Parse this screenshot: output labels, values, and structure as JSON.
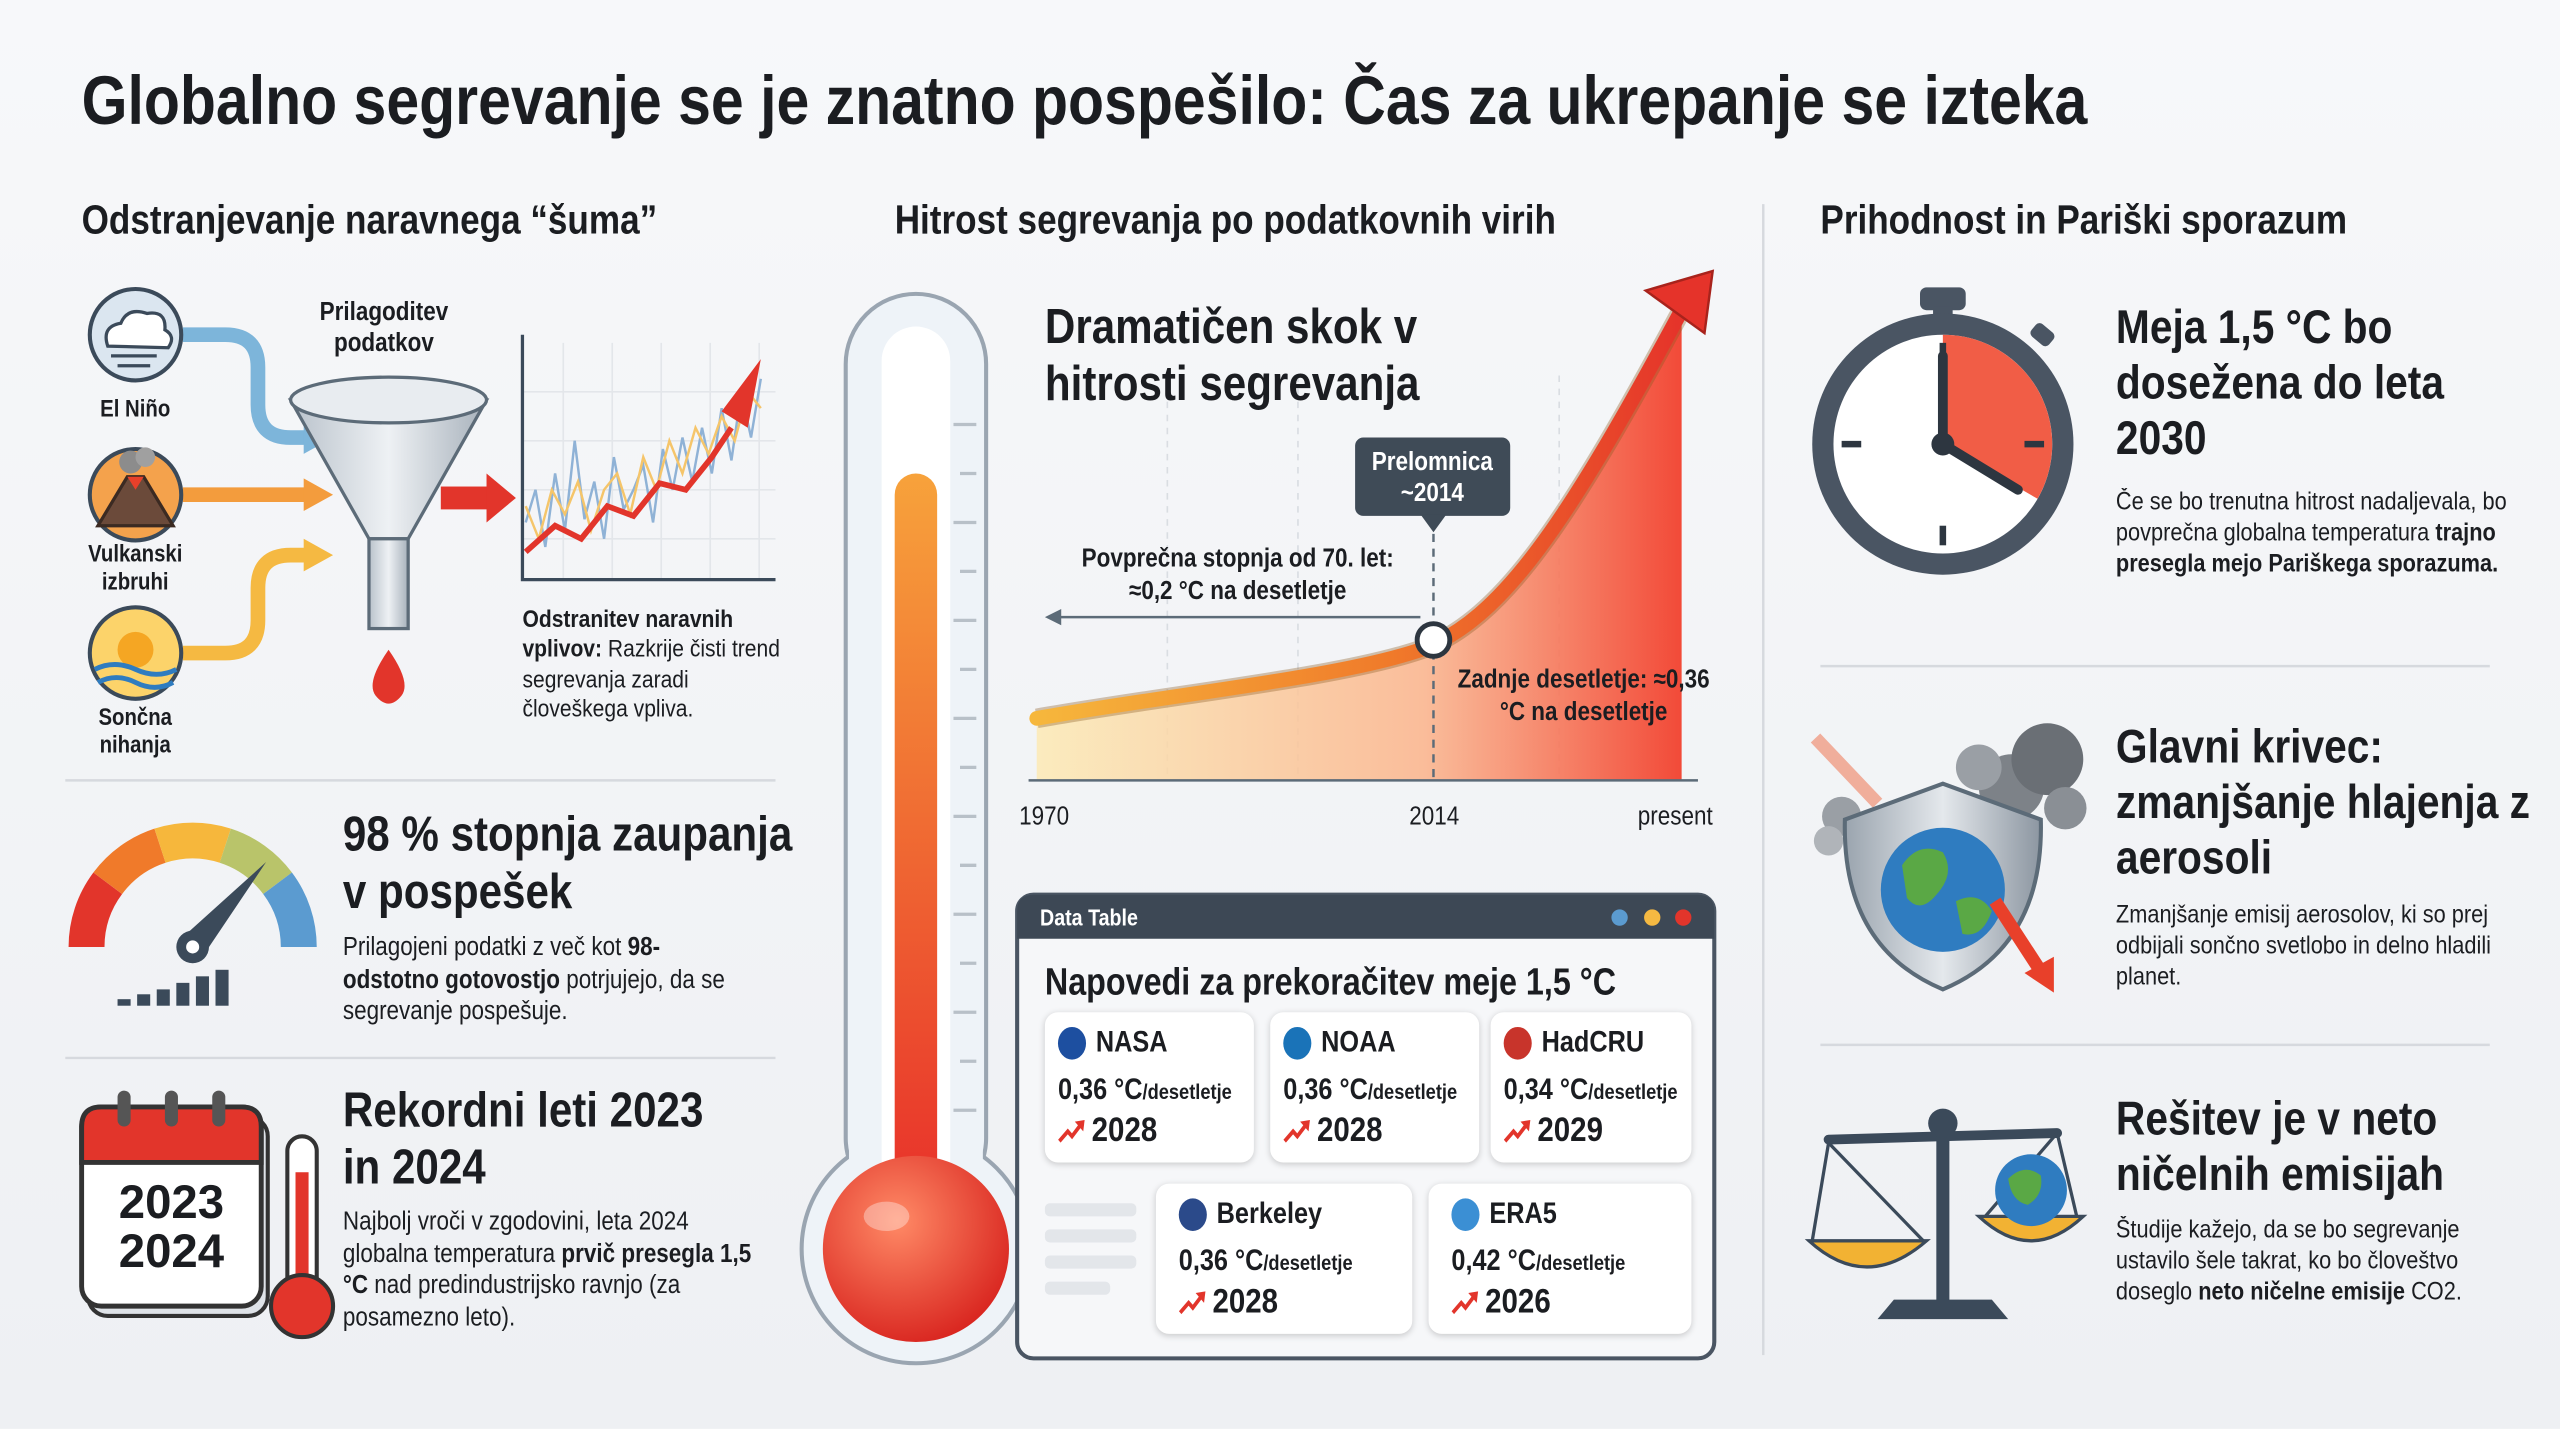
{
  "title": "Globalno segrevanje se je znatno pospešilo: Čas za ukrepanje se izteka",
  "noise_removal": {
    "heading": "Odstranjevanje naravnega “šuma”",
    "sources": [
      "El Niño",
      "Vulkanski izbruhi",
      "Sončna nihanja"
    ],
    "filter_label": "Prilagoditev podatkov",
    "caption": [
      {
        "text": "Odstranitev naravnih vplivov:",
        "bold": true
      },
      {
        "text": " Razkrije čisti trend segrevanja zaradi človeškega vpliva."
      }
    ]
  },
  "confidence": {
    "title": "98 % stopnja zaupanja v pospešek",
    "text": [
      {
        "text": "Prilagojeni podatki z več kot "
      },
      {
        "text": "98-odstotno gotovostjo",
        "bold": true
      },
      {
        "text": " potrjujejo, da se segrevanje pospešuje."
      }
    ]
  },
  "records": {
    "calendar_years": [
      "2023",
      "2024"
    ],
    "title": "Rekordni leti 2023 in 2024",
    "text": [
      {
        "text": "Najbolj vroči v zgodovini, leta 2024 globalna temperatura "
      },
      {
        "text": "prvič presegla 1,5 °C",
        "bold": true
      },
      {
        "text": " nad predindustrijsko ravnjo (za posamezno leto)."
      }
    ]
  },
  "warming_rate": {
    "heading": "Hitrost segrevanja po podatkovnih virih",
    "chart_title": "Dramatičen skok v hitrosti segrevanja",
    "turning_point": [
      "Prelomnica",
      "~2014"
    ],
    "long_term_note": "Povprečna stopnja od 70. let: ≈0,2 °C na desetletje",
    "recent_note": "Zadnje desetletje: ≈0,36 °C na desetletje",
    "axis_labels": [
      "1970",
      "2014",
      "present"
    ]
  },
  "data_table": {
    "window_title": "Data Table",
    "title": "Napovedi za prekoračitev meje 1,5 °C",
    "sources": [
      {
        "name": "NASA",
        "rate": "0,36 °C",
        "unit": "/desetletje",
        "year": "2028"
      },
      {
        "name": "NOAA",
        "rate": "0,36 °C",
        "unit": "/desetletje",
        "year": "2028"
      },
      {
        "name": "HadCRU",
        "rate": "0,34 °C",
        "unit": "/desetletje",
        "year": "2029"
      },
      {
        "name": "Berkeley",
        "rate": "0,36 °C",
        "unit": "/desetletje",
        "year": "2028"
      },
      {
        "name": "ERA5",
        "rate": "0,42 °C",
        "unit": "/desetletje",
        "year": "2026"
      }
    ]
  },
  "future": {
    "heading": "Prihodnost in Pariški sporazum",
    "items": [
      {
        "title": "Meja 1,5 °C bo dosežena do leta 2030",
        "text": [
          {
            "text": "Če se bo trenutna hitrost nadaljevala, bo povprečna globalna temperatura "
          },
          {
            "text": "trajno presegla mejo Pariškega sporazuma.",
            "bold": true
          }
        ]
      },
      {
        "title": "Glavni krivec: zmanjšanje hlajenja z aerosoli",
        "text": [
          {
            "text": "Zmanjšanje emisij aerosolov, ki so prej odbijali sončno svetlobo in delno hladili planet."
          }
        ]
      },
      {
        "title": "Rešitev je v neto ničelnih emisijah",
        "text": [
          {
            "text": "Študije kažejo, da se bo segrevanje ustavilo šele takrat, ko bo človeštvo doseglo "
          },
          {
            "text": "neto ničelne emisije",
            "bold": true
          },
          {
            "text": " CO2."
          }
        ]
      }
    ]
  }
}
